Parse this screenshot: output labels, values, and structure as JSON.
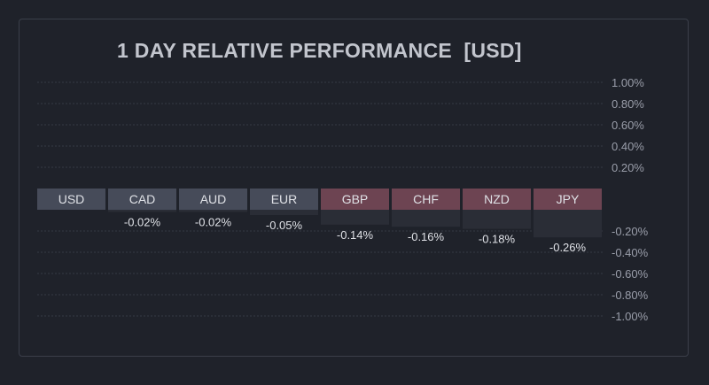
{
  "chart_data": {
    "type": "bar",
    "title": "1 DAY RELATIVE PERFORMANCE  [USD]",
    "categories": [
      "USD",
      "CAD",
      "AUD",
      "EUR",
      "GBP",
      "CHF",
      "NZD",
      "JPY"
    ],
    "values": [
      0,
      -0.02,
      -0.02,
      -0.05,
      -0.14,
      -0.16,
      -0.18,
      -0.26
    ],
    "value_labels": [
      "",
      "-0.02%",
      "-0.02%",
      "-0.05%",
      "-0.14%",
      "-0.16%",
      "-0.18%",
      "-0.26%"
    ],
    "ylim": [
      -1.0,
      1.0
    ],
    "yticks": [
      1.0,
      0.8,
      0.6,
      0.4,
      0.2,
      -0.2,
      -0.4,
      -0.6,
      -0.8,
      -1.0
    ],
    "ytick_labels": [
      "1.00%",
      "0.80%",
      "0.60%",
      "0.40%",
      "0.20%",
      "-0.20%",
      "-0.40%",
      "-0.60%",
      "-0.80%",
      "-1.00%"
    ],
    "grid": true,
    "axis_side": "right"
  },
  "colors": {
    "background": "#1f222a",
    "grid": "#353944",
    "axis_text": "#9a9eaa",
    "label_text": "#dfe1e6",
    "neutral": "#464b59",
    "negative": "#6d4452",
    "bar_fill": "#2a2d36"
  }
}
